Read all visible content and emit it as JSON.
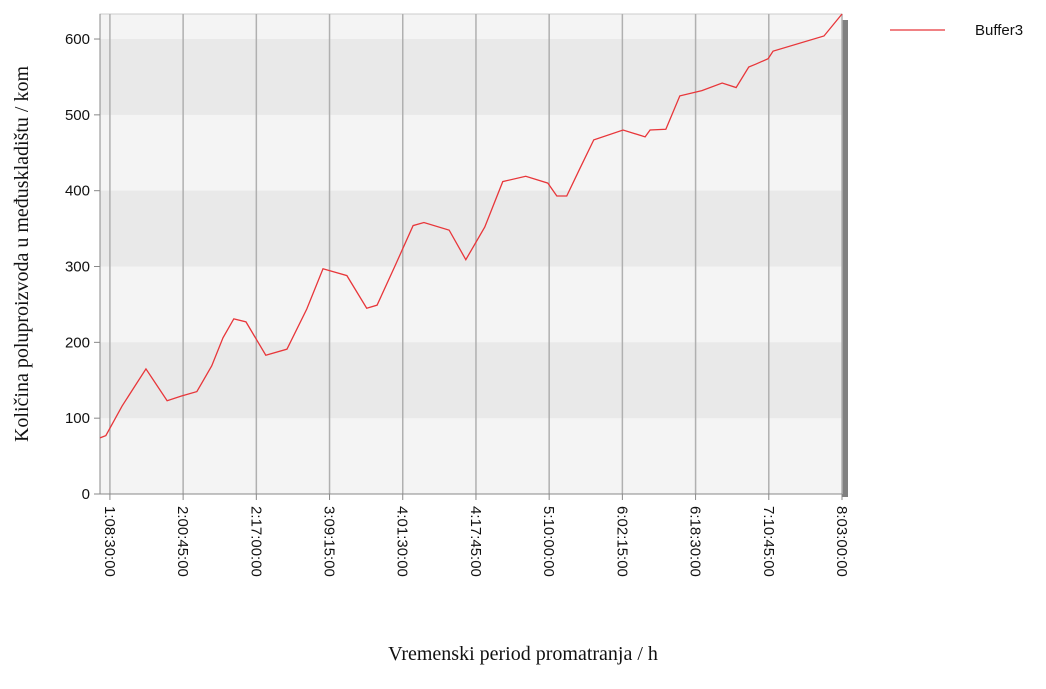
{
  "chart_data": {
    "type": "line",
    "x_label": "Vremenski period promatranja / h",
    "y_label": "Količina poluproizvoda u međuskladištu / kom",
    "x": [
      30.3,
      31.6,
      35.2,
      40.5,
      45.2,
      48.3,
      51.8,
      55.1,
      57.6,
      60.0,
      62.7,
      67.1,
      71.8,
      76.2,
      79.8,
      85.1,
      89.5,
      91.8,
      95.8,
      99.8,
      102.2,
      107.8,
      111.5,
      115.7,
      119.7,
      124.8,
      129.7,
      131.7,
      133.9,
      136.8,
      139.9,
      146.4,
      151.3,
      152.4,
      155.9,
      159.0,
      163.9,
      168.4,
      171.5,
      174.3,
      175.9,
      178.6,
      179.7,
      191.0,
      195.0
    ],
    "series": [
      {
        "name": "Buffer3",
        "color": "#e8363a",
        "values": [
          74,
          77,
          116,
          165,
          123,
          129,
          135,
          169,
          206,
          231,
          227,
          183,
          191,
          244,
          297,
          288,
          245,
          249,
          301,
          354,
          358,
          348,
          309,
          352,
          412,
          419,
          410,
          393,
          393,
          429,
          467,
          480,
          471,
          480,
          481,
          525,
          532,
          542,
          536,
          563,
          567,
          574,
          584,
          604,
          633
        ]
      }
    ],
    "xlim": [
      30.3,
      195
    ],
    "xticks": [
      {
        "value": 32.5,
        "label": "1:08:30:00"
      },
      {
        "value": 48.75,
        "label": "2:00:45:00"
      },
      {
        "value": 65,
        "label": "2:17:00:00"
      },
      {
        "value": 81.25,
        "label": "3:09:15:00"
      },
      {
        "value": 97.5,
        "label": "4:01:30:00"
      },
      {
        "value": 113.75,
        "label": "4:17:45:00"
      },
      {
        "value": 130,
        "label": "5:10:00:00"
      },
      {
        "value": 146.25,
        "label": "6:02:15:00"
      },
      {
        "value": 162.5,
        "label": "6:18:30:00"
      },
      {
        "value": 178.75,
        "label": "7:10:45:00"
      },
      {
        "value": 195,
        "label": "8:03:00:00"
      }
    ],
    "ylim": [
      0,
      633
    ],
    "yticks": [
      0,
      100,
      200,
      300,
      400,
      500,
      600
    ],
    "grid": true,
    "legend": "upper right"
  }
}
